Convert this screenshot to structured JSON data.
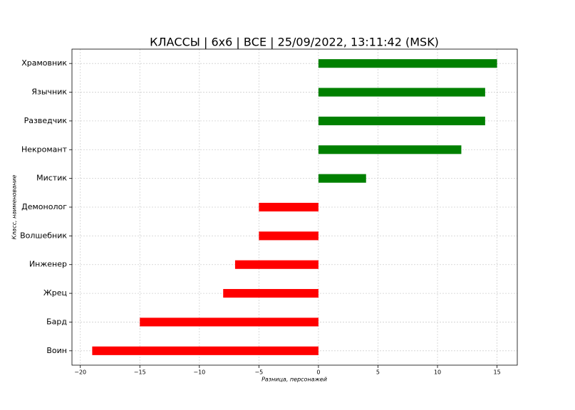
{
  "chart_data": {
    "type": "barh",
    "title": "КЛАССЫ | 6x6 | ВСЕ | 25/09/2022, 13:11:42 (MSK)",
    "x_label": "Разница, персонажей",
    "y_label": "Класс, наименование",
    "categories": [
      "Храмовник",
      "Язычник",
      "Разведчик",
      "Некромант",
      "Мистик",
      "Демонолог",
      "Волшебник",
      "Инженер",
      "Жрец",
      "Бард",
      "Воин"
    ],
    "values": [
      15,
      14,
      14,
      12,
      4,
      -5,
      -5,
      -7,
      -8,
      -15,
      -19
    ],
    "colors": [
      "#008000",
      "#008000",
      "#008000",
      "#008000",
      "#008000",
      "#ff0000",
      "#ff0000",
      "#ff0000",
      "#ff0000",
      "#ff0000",
      "#ff0000"
    ],
    "xlim": [
      -20.7,
      16.7
    ],
    "xticks": [
      {
        "value": -20,
        "label": "−20"
      },
      {
        "value": -15,
        "label": "−15"
      },
      {
        "value": -10,
        "label": "−10"
      },
      {
        "value": -5,
        "label": "−5"
      },
      0,
      5,
      10,
      15
    ],
    "grid": true
  }
}
